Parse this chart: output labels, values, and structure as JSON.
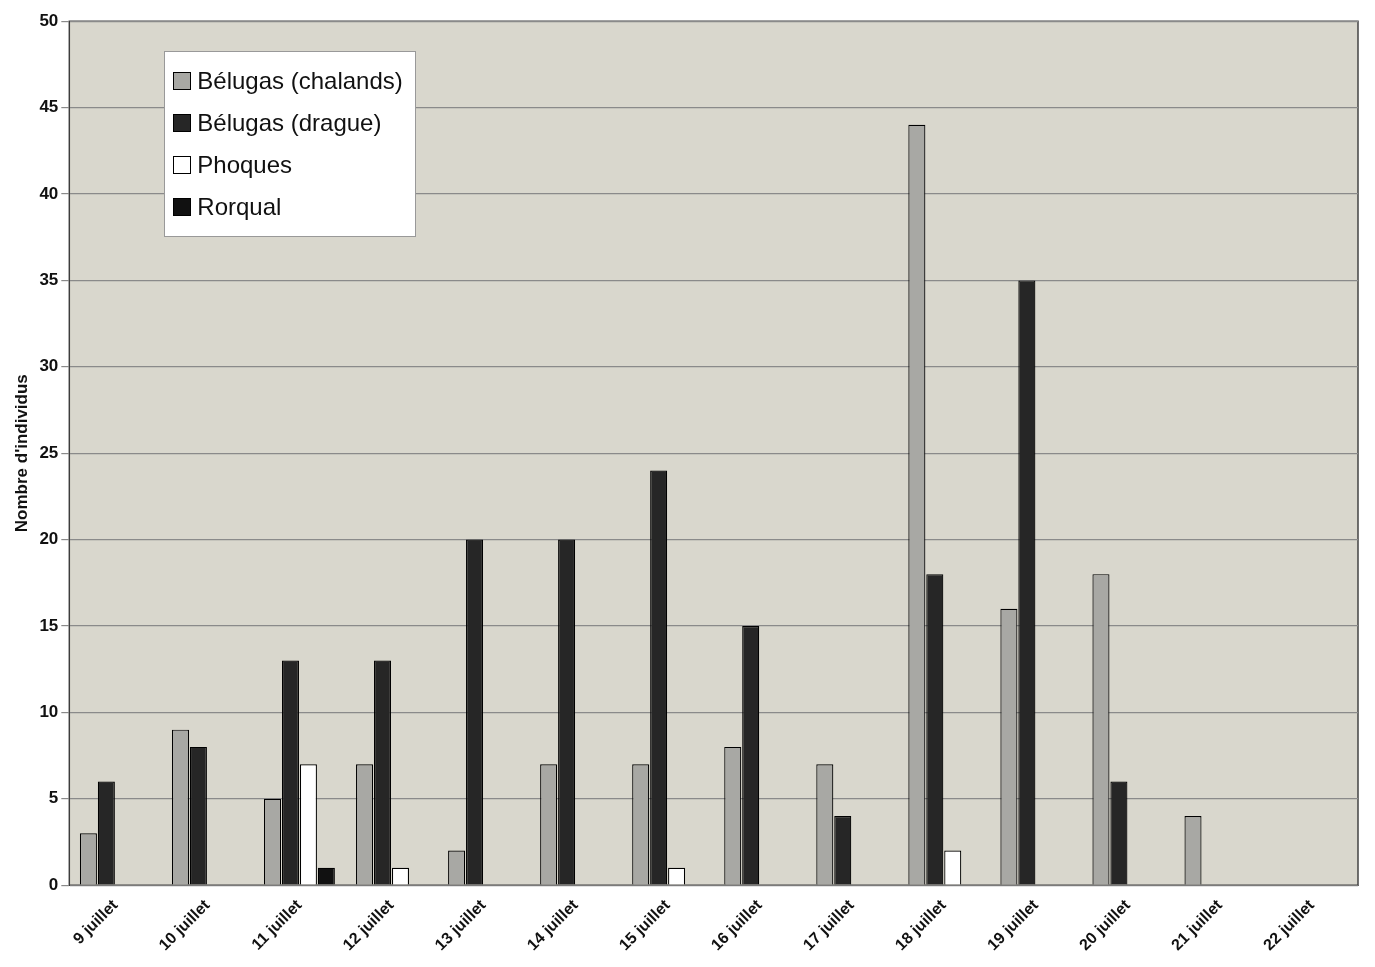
{
  "chart_data": {
    "type": "bar",
    "ylabel": "Nombre d'individus",
    "categories": [
      "9 juillet",
      "10 juillet",
      "11 juillet",
      "12 juillet",
      "13 juillet",
      "14 juillet",
      "15 juillet",
      "16 juillet",
      "17 juillet",
      "18 juillet",
      "19 juillet",
      "20 juillet",
      "21 juillet",
      "22 juillet"
    ],
    "series": [
      {
        "name": "Bélugas (chalands)",
        "color": "#a8a8a4",
        "values": [
          3,
          9,
          5,
          7,
          2,
          7,
          7,
          8,
          7,
          44,
          16,
          18,
          4,
          0
        ]
      },
      {
        "name": "Bélugas (drague)",
        "color": "#262626",
        "values": [
          6,
          8,
          13,
          13,
          20,
          20,
          24,
          15,
          4,
          18,
          35,
          6,
          0,
          0
        ]
      },
      {
        "name": "Phoques",
        "color": "#ffffff",
        "values": [
          0,
          0,
          7,
          1,
          0,
          0,
          1,
          0,
          0,
          2,
          0,
          0,
          0,
          0
        ]
      },
      {
        "name": "Rorqual",
        "color": "#111111",
        "values": [
          0,
          0,
          1,
          0,
          0,
          0,
          0,
          0,
          0,
          0,
          0,
          0,
          0,
          0
        ]
      }
    ],
    "ylim": [
      0,
      50
    ],
    "yticks": [
      0,
      5,
      10,
      15,
      20,
      25,
      30,
      35,
      40,
      45,
      50
    ],
    "grid": "y",
    "legend": "top left"
  }
}
